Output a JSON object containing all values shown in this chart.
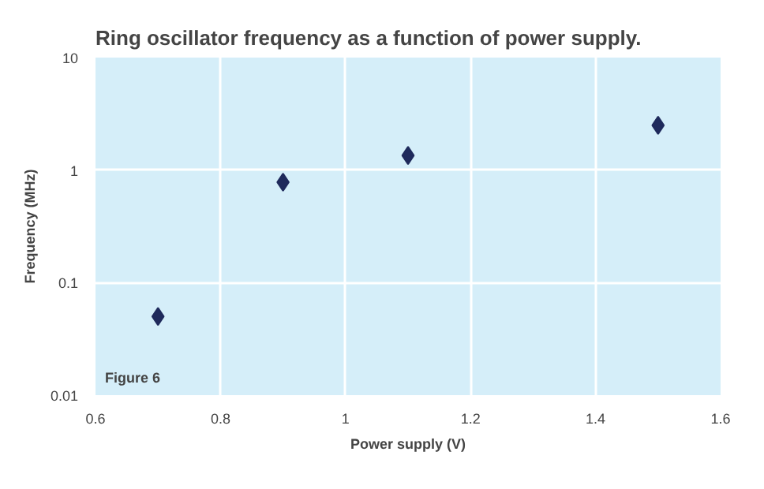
{
  "chart_data": {
    "type": "scatter",
    "title": "Ring oscillator frequency as a function of power supply.",
    "xlabel": "Power supply (V)",
    "ylabel": "Frequency (MHz)",
    "x": [
      0.7,
      0.9,
      1.1,
      1.5
    ],
    "values": [
      0.05,
      0.78,
      1.35,
      2.5
    ],
    "color": "#1f2a5c",
    "marker": "diamond",
    "xlim": [
      0.6,
      1.6
    ],
    "xticks": [
      0.6,
      0.8,
      1,
      1.2,
      1.4,
      1.6
    ],
    "ylim": [
      0.01,
      10
    ],
    "yticks": [
      0.01,
      0.1,
      1,
      10
    ],
    "log": true,
    "grid": true,
    "annotations": [
      "Figure 6"
    ]
  }
}
